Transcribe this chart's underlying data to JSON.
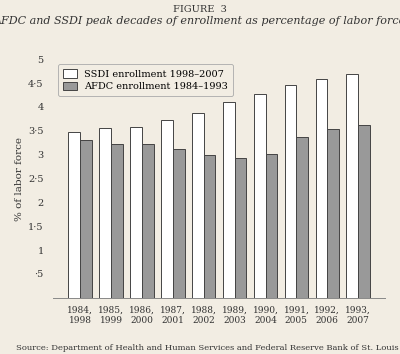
{
  "figure_label": "FIGURE  3",
  "title": "AFDC and SSDI peak decades of enrollment as percentage of labor force",
  "xlabel_pairs": [
    [
      "1984,",
      "1998"
    ],
    [
      "1985,",
      "1999"
    ],
    [
      "1986,",
      "2000"
    ],
    [
      "1987,",
      "2001"
    ],
    [
      "1988,",
      "2002"
    ],
    [
      "1989,",
      "2003"
    ],
    [
      "1990,",
      "2004"
    ],
    [
      "1991,",
      "2005"
    ],
    [
      "1992,",
      "2006"
    ],
    [
      "1993,",
      "2007"
    ]
  ],
  "ssdi_values": [
    3.48,
    3.55,
    3.57,
    3.72,
    3.88,
    4.1,
    4.28,
    4.47,
    4.58,
    4.68
  ],
  "afdc_values": [
    3.3,
    3.22,
    3.22,
    3.12,
    2.99,
    2.93,
    3.02,
    3.37,
    3.53,
    3.62
  ],
  "ssdi_color": "#ffffff",
  "ssdi_edgecolor": "#444444",
  "afdc_color": "#999999",
  "afdc_edgecolor": "#444444",
  "ylim": [
    0,
    5
  ],
  "yticks": [
    0.5,
    1.0,
    1.5,
    2.0,
    2.5,
    3.0,
    3.5,
    4.0,
    4.5,
    5.0
  ],
  "ytick_labels": [
    "·5",
    "1",
    "1·5",
    "2",
    "2·5",
    "3",
    "3·5",
    "4",
    "4·5",
    "5"
  ],
  "ylabel": "% of labor force",
  "legend_ssdi": "SSDI enrollment 1998–2007",
  "legend_afdc": "AFDC enrollment 1984–1993",
  "source_text": "Source: Department of Health and Human Services and Federal Reserve Bank of St. Louis",
  "bar_width": 0.38,
  "background_color": "#f2ede3",
  "figsize": [
    4.0,
    3.54
  ],
  "dpi": 100
}
